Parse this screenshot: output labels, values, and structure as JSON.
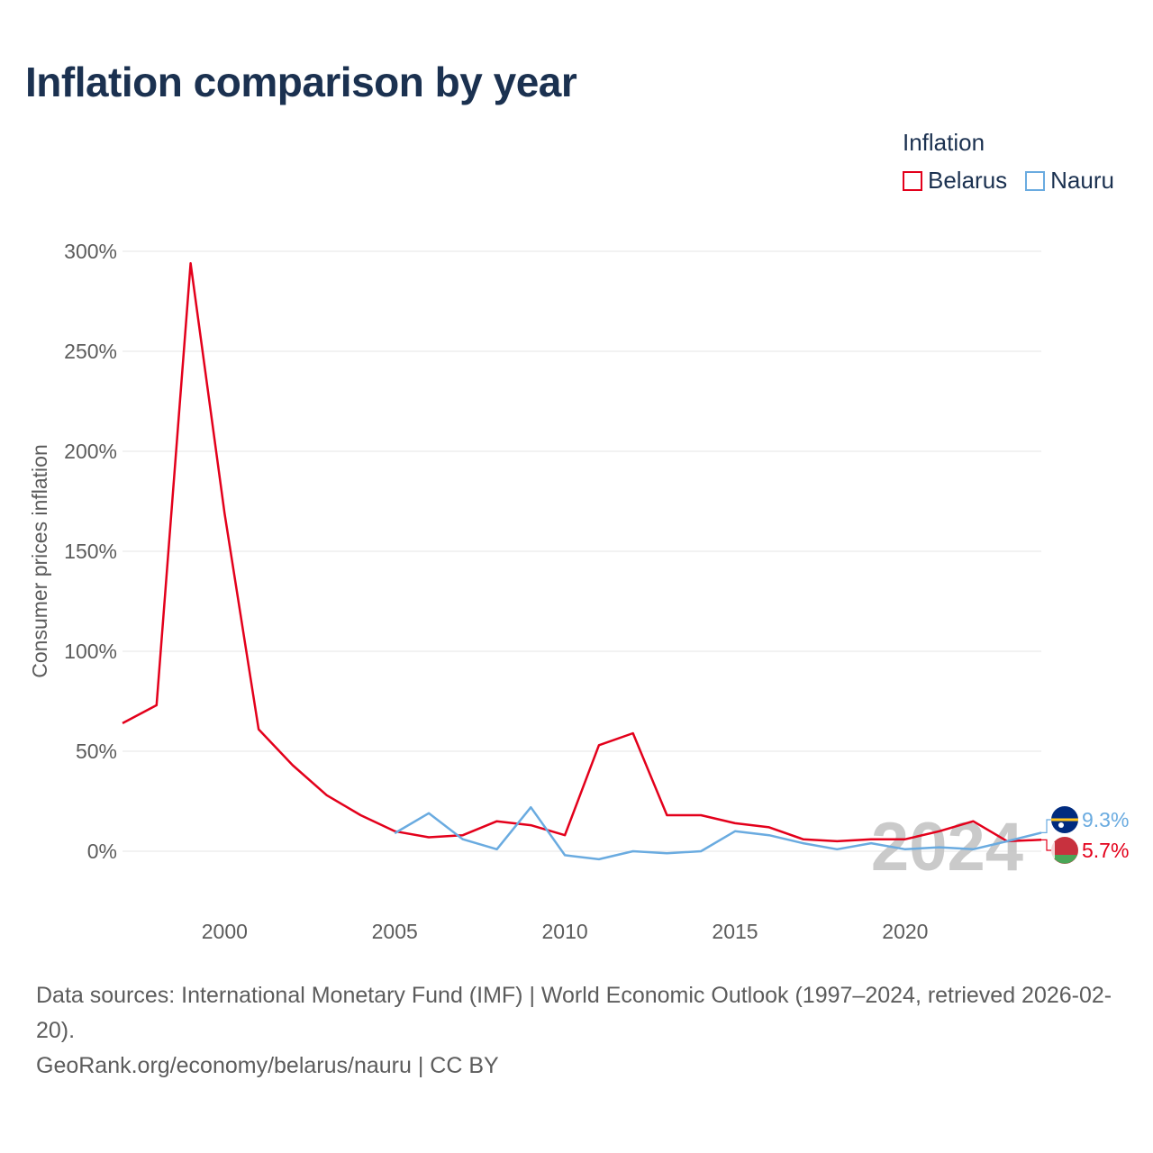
{
  "title": "Inflation comparison by year",
  "legend": {
    "title": "Inflation"
  },
  "footer": {
    "sources": "Data sources: International Monetary Fund (IMF) | World Economic Outlook (1997–2024, retrieved 2026-02-20).",
    "link": "GeoRank.org/economy/belarus/nauru | CC BY"
  },
  "colors": {
    "belarus": "#e3001b",
    "nauru": "#6aabe0",
    "grid": "#e6e6e6",
    "text": "#5c5c5c",
    "watermark": "#c4c4c4"
  },
  "chart_data": {
    "type": "line",
    "title": "Inflation comparison by year",
    "xlabel": "",
    "ylabel": "Consumer prices inflation",
    "xlim": [
      1997,
      2024
    ],
    "ylim": [
      -30,
      300
    ],
    "yticks": [
      0,
      50,
      100,
      150,
      200,
      250,
      300
    ],
    "ytick_labels": [
      "0%",
      "50%",
      "100%",
      "150%",
      "200%",
      "250%",
      "300%"
    ],
    "xticks": [
      2000,
      2005,
      2010,
      2015,
      2020
    ],
    "xtick_labels": [
      "2000",
      "2005",
      "2010",
      "2015",
      "2020"
    ],
    "watermark_year": "2024",
    "series": [
      {
        "name": "Belarus",
        "color_key": "belarus",
        "end_label": "5.7%",
        "flag": "belarus-flag",
        "x": [
          1997,
          1998,
          1999,
          2000,
          2001,
          2002,
          2003,
          2004,
          2005,
          2006,
          2007,
          2008,
          2009,
          2010,
          2011,
          2012,
          2013,
          2014,
          2015,
          2016,
          2017,
          2018,
          2019,
          2020,
          2021,
          2022,
          2023,
          2024
        ],
        "values": [
          64,
          73,
          294,
          169,
          61,
          43,
          28,
          18,
          10,
          7,
          8,
          15,
          13,
          8,
          53,
          59,
          18,
          18,
          14,
          12,
          6,
          5,
          6,
          6,
          10,
          15,
          5,
          5.7
        ]
      },
      {
        "name": "Nauru",
        "color_key": "nauru",
        "end_label": "9.3%",
        "flag": "nauru-flag",
        "x": [
          2005,
          2006,
          2007,
          2008,
          2009,
          2010,
          2011,
          2012,
          2013,
          2014,
          2015,
          2016,
          2017,
          2018,
          2019,
          2020,
          2021,
          2022,
          2023,
          2024
        ],
        "values": [
          9,
          19,
          6,
          1,
          22,
          -2,
          -4,
          0,
          -1,
          0,
          10,
          8,
          4,
          1,
          4,
          1,
          2,
          1,
          5,
          9.3
        ]
      }
    ]
  }
}
